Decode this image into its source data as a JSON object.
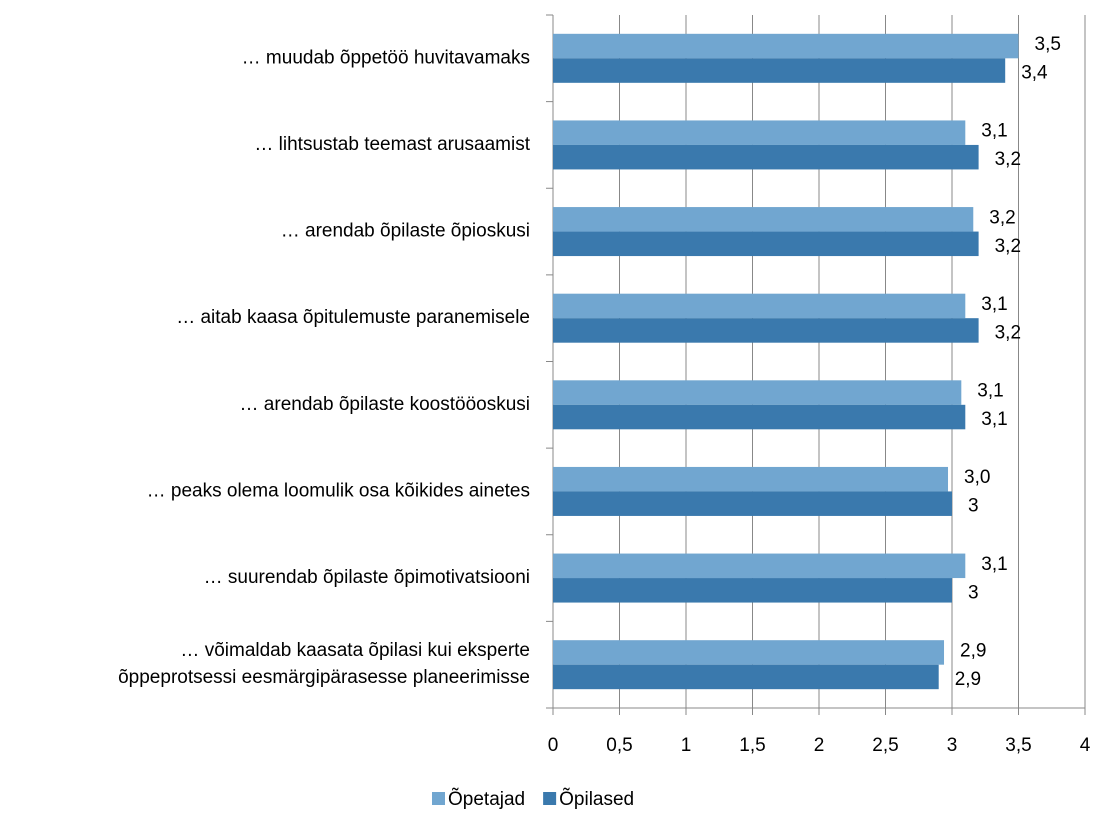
{
  "chart_data": {
    "type": "hbar",
    "categories": [
      "… muudab õppetöö huvitavamaks",
      "… lihtsustab teemast arusaamist",
      "… arendab õpilaste õpioskusi",
      "… aitab kaasa õpitulemuste paranemisele",
      "… arendab õpilaste koostööoskusi",
      "… peaks olema loomulik osa kõikides ainetes",
      "… suurendab õpilaste õpimotivatsiooni",
      "… võimaldab kaasata õpilasi kui eksperte\nõppeprotsessi eesmärgipärasesse planeerimisse"
    ],
    "series": [
      {
        "name": "Õpetajad",
        "color": "#71a6d0",
        "values": [
          3.5,
          3.1,
          3.16,
          3.1,
          3.07,
          2.97,
          3.1,
          2.94
        ],
        "value_labels": [
          "3,5",
          "3,1",
          "3,2",
          "3,1",
          "3,1",
          "3,0",
          "3,1",
          "2,9"
        ]
      },
      {
        "name": "Õpilased",
        "color": "#3a79ad",
        "values": [
          3.4,
          3.2,
          3.2,
          3.2,
          3.1,
          3.0,
          3.0,
          2.9
        ],
        "value_labels": [
          "3,4",
          "3,2",
          "3,2",
          "3,2",
          "3,1",
          "3",
          "3",
          "2,9"
        ]
      }
    ],
    "xlim": [
      0,
      4
    ],
    "xticks": [
      0,
      {
        "value": 0.5,
        "label": "0,5"
      },
      1,
      {
        "value": 1.5,
        "label": "1,5"
      },
      2,
      {
        "value": 2.5,
        "label": "2,5"
      },
      3,
      {
        "value": 3.5,
        "label": "3,5"
      },
      4
    ],
    "grid": true,
    "legend": "bottom"
  }
}
